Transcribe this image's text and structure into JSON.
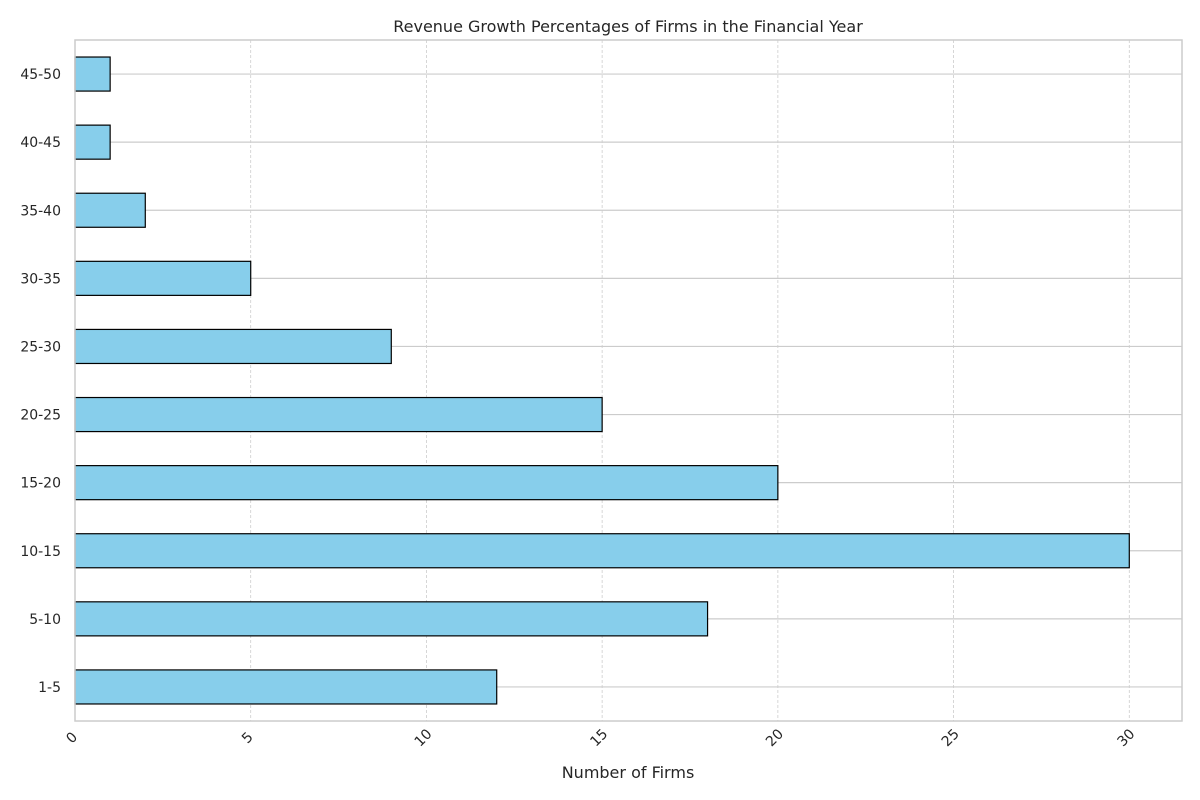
{
  "chart_data": {
    "type": "bar",
    "orientation": "horizontal",
    "title": "Revenue Growth Percentages of Firms in the Financial Year",
    "xlabel": "Number of Firms",
    "ylabel": "",
    "categories": [
      "1-5",
      "5-10",
      "10-15",
      "15-20",
      "20-25",
      "25-30",
      "30-35",
      "35-40",
      "40-45",
      "45-50"
    ],
    "values": [
      12,
      18,
      30,
      20,
      15,
      9,
      5,
      2,
      1,
      1
    ],
    "xlim": [
      0,
      31.5
    ],
    "xticks": [
      0,
      5,
      10,
      15,
      20,
      25,
      30
    ],
    "xtick_rotation": -45,
    "grid": true,
    "colors": {
      "bar_fill": "#87CEEB",
      "bar_edge": "#000000",
      "grid": "#cccccc",
      "spine": "#cccccc",
      "text": "#262626"
    }
  }
}
